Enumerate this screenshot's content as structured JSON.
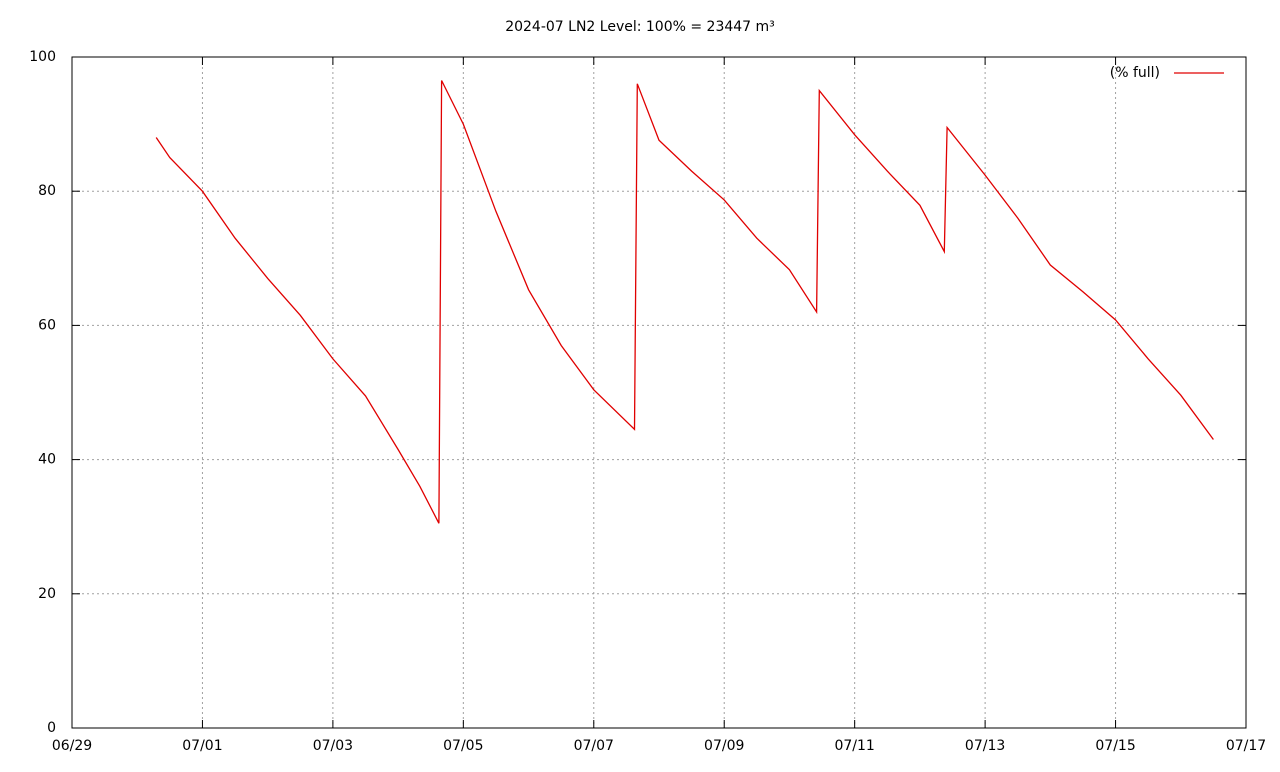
{
  "chart_data": {
    "type": "line",
    "title": "2024-07 LN2 Level: 100% = 23447 m³",
    "x": [
      "06/30 07:00",
      "06/30 12:00",
      "07/01 00:00",
      "07/01 12:00",
      "07/02 00:00",
      "07/02 12:00",
      "07/03 00:00",
      "07/03 12:00",
      "07/04 00:00",
      "07/04 08:00",
      "07/04 15:00",
      "07/04 16:00",
      "07/05 00:00",
      "07/05 12:00",
      "07/06 00:00",
      "07/06 12:00",
      "07/07 00:00",
      "07/07 15:00",
      "07/07 16:00",
      "07/08 00:00",
      "07/08 12:00",
      "07/09 00:00",
      "07/09 12:00",
      "07/10 00:00",
      "07/10 10:00",
      "07/10 11:00",
      "07/11 00:00",
      "07/11 12:00",
      "07/12 00:00",
      "07/12 09:00",
      "07/12 10:00",
      "07/13 00:00",
      "07/13 12:00",
      "07/14 00:00",
      "07/14 12:00",
      "07/15 00:00",
      "07/15 12:00",
      "07/16 00:00",
      "07/16 12:00"
    ],
    "series": [
      {
        "name": "(% full)",
        "color": "#e00000",
        "values": [
          88,
          85,
          80,
          73,
          67,
          61.5,
          55,
          49.5,
          41.5,
          36,
          30.5,
          96.5,
          90,
          77,
          65.3,
          57,
          50.4,
          44.5,
          96,
          87.6,
          83,
          78.7,
          73,
          68.3,
          62,
          95,
          88.4,
          83,
          77.9,
          71,
          89.5,
          82.4,
          76,
          69,
          65,
          60.8,
          55,
          49.6,
          43
        ]
      }
    ],
    "xlim": [
      "06/29",
      "07/17"
    ],
    "xticks": [
      "06/29",
      "07/01",
      "07/03",
      "07/05",
      "07/07",
      "07/09",
      "07/11",
      "07/13",
      "07/15",
      "07/17"
    ],
    "ylim": [
      0,
      100
    ],
    "yticks": [
      0,
      20,
      40,
      60,
      80,
      100
    ],
    "grid": true,
    "legend": "top-right"
  }
}
